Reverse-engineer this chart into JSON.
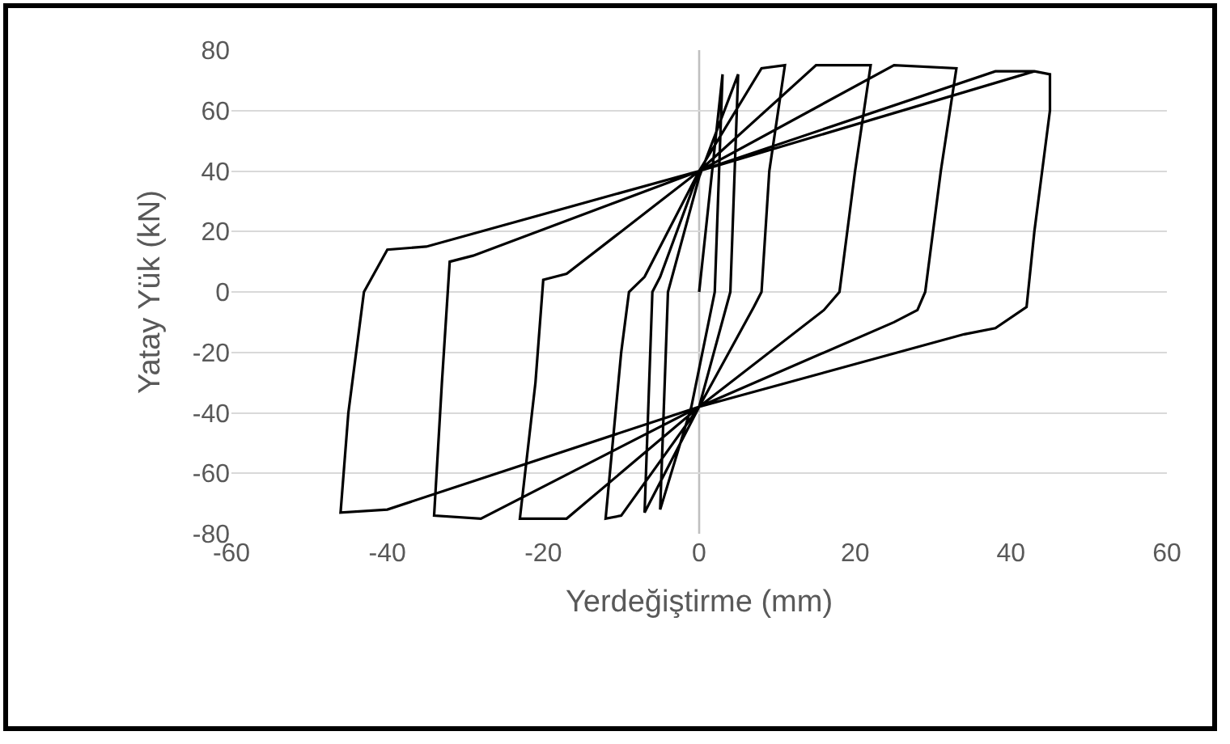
{
  "chart_data": {
    "type": "line",
    "xlabel": "Yerdeğiştirme (mm)",
    "ylabel": "Yatay Yük (kN)",
    "xlim": [
      -60,
      60
    ],
    "xticks": [
      -60,
      -40,
      -20,
      0,
      20,
      40,
      60
    ],
    "ylim": [
      -80,
      80
    ],
    "yticks": [
      -80,
      -60,
      -40,
      -20,
      0,
      20,
      40,
      60,
      80
    ],
    "grid": "y",
    "marker": "none",
    "line_style": "solid",
    "ref_lines": [
      {
        "axis": "x",
        "value": 0,
        "color": "#bfbfbf"
      }
    ],
    "series": [
      {
        "color": "#000000",
        "x": [
          0,
          3,
          2,
          -1,
          -5,
          -4,
          0,
          5,
          4,
          0,
          -7,
          -6,
          -5,
          0,
          8,
          11,
          9,
          8,
          7,
          0,
          -10,
          -12,
          -10,
          -9,
          -7,
          0,
          15,
          22,
          20,
          18,
          16,
          0,
          -17,
          -23,
          -21,
          -20,
          -17,
          0,
          25,
          33,
          31,
          29,
          28,
          25,
          0,
          -28,
          -34,
          -33,
          -32,
          -29,
          0,
          38,
          43,
          45,
          45,
          43,
          42,
          38,
          34,
          0,
          -40,
          -46,
          -45,
          -43,
          -40,
          -35,
          0,
          43
        ],
        "values": [
          0,
          72,
          0,
          -38,
          -72,
          0,
          38,
          72,
          0,
          -38,
          -73,
          0,
          5,
          40,
          74,
          75,
          40,
          0,
          -5,
          -38,
          -74,
          -75,
          -20,
          0,
          5,
          40,
          75,
          75,
          40,
          0,
          -6,
          -38,
          -75,
          -75,
          -30,
          4,
          6,
          40,
          75,
          74,
          40,
          0,
          -6,
          -10,
          -38,
          -75,
          -74,
          -30,
          10,
          12,
          40,
          73,
          73,
          72,
          60,
          20,
          -5,
          -12,
          -14,
          -38,
          -72,
          -73,
          -40,
          0,
          14,
          15,
          40,
          73
        ]
      }
    ]
  }
}
